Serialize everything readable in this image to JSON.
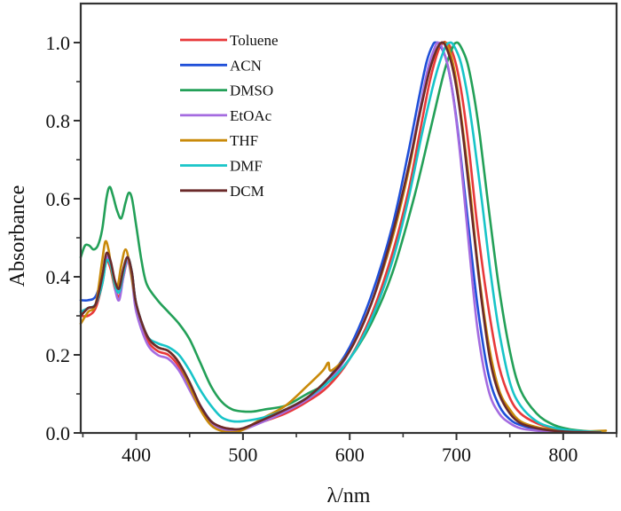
{
  "chart_data": {
    "type": "line",
    "title": "",
    "xlabel": "λ/nm",
    "ylabel": "Absorbance",
    "xlim": [
      348,
      850
    ],
    "ylim": [
      0.0,
      1.1
    ],
    "x_ticks": [
      400,
      500,
      600,
      700,
      800
    ],
    "x_tick_labels": [
      "400",
      "500",
      "600",
      "700",
      "800"
    ],
    "x_minor_ticks": [
      350,
      450,
      550,
      650,
      750,
      850
    ],
    "y_ticks": [
      0.0,
      0.2,
      0.4,
      0.6,
      0.8,
      1.0
    ],
    "y_tick_labels": [
      "0.0",
      "0.2",
      "0.4",
      "0.6",
      "0.8",
      "1.0"
    ],
    "y_minor_ticks": [
      0.1,
      0.3,
      0.5,
      0.7,
      0.9
    ],
    "grid": false,
    "legend_position": "top-left",
    "series": [
      {
        "name": "Toluene",
        "color": "#e8393a",
        "x": [
          348,
          355,
          362,
          368,
          372,
          376,
          380,
          384,
          388,
          392,
          396,
          400,
          410,
          420,
          430,
          440,
          450,
          460,
          470,
          480,
          490,
          500,
          520,
          540,
          560,
          580,
          600,
          620,
          640,
          655,
          665,
          675,
          683,
          688,
          690,
          694,
          700,
          706,
          712,
          720,
          730,
          740,
          750,
          760,
          775,
          790,
          805,
          820,
          835
        ],
        "y": [
          0.3,
          0.3,
          0.32,
          0.38,
          0.44,
          0.42,
          0.37,
          0.35,
          0.4,
          0.44,
          0.4,
          0.32,
          0.24,
          0.21,
          0.2,
          0.17,
          0.12,
          0.07,
          0.03,
          0.015,
          0.01,
          0.01,
          0.03,
          0.05,
          0.08,
          0.12,
          0.19,
          0.3,
          0.46,
          0.62,
          0.76,
          0.9,
          0.98,
          1.0,
          1.0,
          0.99,
          0.94,
          0.85,
          0.72,
          0.52,
          0.32,
          0.17,
          0.09,
          0.05,
          0.025,
          0.012,
          0.006,
          0.003,
          0.002
        ]
      },
      {
        "name": "ACN",
        "color": "#1f4fd8",
        "x": [
          348,
          355,
          362,
          368,
          372,
          376,
          380,
          384,
          388,
          392,
          396,
          400,
          410,
          420,
          430,
          440,
          450,
          460,
          470,
          480,
          490,
          500,
          520,
          540,
          560,
          580,
          600,
          620,
          640,
          655,
          665,
          672,
          678,
          681,
          684,
          690,
          696,
          702,
          710,
          720,
          730,
          740,
          750,
          760,
          775,
          790,
          805,
          820,
          835
        ],
        "y": [
          0.34,
          0.34,
          0.35,
          0.4,
          0.45,
          0.43,
          0.38,
          0.37,
          0.42,
          0.45,
          0.41,
          0.33,
          0.25,
          0.22,
          0.21,
          0.18,
          0.12,
          0.07,
          0.03,
          0.01,
          0.005,
          0.01,
          0.035,
          0.06,
          0.09,
          0.14,
          0.22,
          0.35,
          0.53,
          0.72,
          0.86,
          0.95,
          0.995,
          1.0,
          0.995,
          0.96,
          0.88,
          0.76,
          0.56,
          0.32,
          0.15,
          0.07,
          0.035,
          0.02,
          0.01,
          0.006,
          0.004,
          0.002,
          0.001
        ]
      },
      {
        "name": "DMSO",
        "color": "#23a058",
        "x": [
          348,
          352,
          356,
          360,
          364,
          368,
          372,
          375,
          378,
          382,
          386,
          390,
          393,
          396,
          400,
          405,
          410,
          420,
          430,
          440,
          450,
          460,
          470,
          480,
          490,
          500,
          510,
          520,
          540,
          560,
          580,
          600,
          620,
          640,
          660,
          675,
          688,
          696,
          700,
          704,
          710,
          716,
          722,
          730,
          740,
          750,
          760,
          775,
          790,
          805,
          820,
          835
        ],
        "y": [
          0.45,
          0.48,
          0.48,
          0.47,
          0.48,
          0.52,
          0.6,
          0.63,
          0.61,
          0.57,
          0.55,
          0.59,
          0.615,
          0.6,
          0.53,
          0.44,
          0.38,
          0.34,
          0.31,
          0.28,
          0.24,
          0.18,
          0.12,
          0.08,
          0.06,
          0.055,
          0.055,
          0.06,
          0.07,
          0.1,
          0.13,
          0.19,
          0.28,
          0.41,
          0.6,
          0.77,
          0.92,
          0.985,
          1.0,
          0.99,
          0.95,
          0.87,
          0.76,
          0.58,
          0.37,
          0.21,
          0.11,
          0.05,
          0.022,
          0.01,
          0.005,
          0.002
        ]
      },
      {
        "name": "EtOAc",
        "color": "#a46be0",
        "x": [
          348,
          355,
          362,
          368,
          372,
          376,
          380,
          384,
          388,
          392,
          396,
          400,
          410,
          420,
          430,
          440,
          450,
          460,
          470,
          480,
          490,
          500,
          520,
          540,
          560,
          580,
          600,
          620,
          640,
          655,
          665,
          673,
          680,
          683,
          686,
          692,
          698,
          704,
          712,
          720,
          730,
          740,
          750,
          760,
          775,
          790,
          805,
          820,
          835
        ],
        "y": [
          0.31,
          0.32,
          0.33,
          0.39,
          0.45,
          0.43,
          0.37,
          0.34,
          0.4,
          0.44,
          0.39,
          0.31,
          0.23,
          0.2,
          0.19,
          0.16,
          0.11,
          0.06,
          0.025,
          0.01,
          0.005,
          0.008,
          0.03,
          0.055,
          0.085,
          0.13,
          0.21,
          0.33,
          0.5,
          0.68,
          0.82,
          0.93,
          0.99,
          1.0,
          0.99,
          0.94,
          0.84,
          0.7,
          0.47,
          0.26,
          0.11,
          0.05,
          0.025,
          0.012,
          0.006,
          0.003,
          0.002,
          0.001,
          0.001
        ]
      },
      {
        "name": "THF",
        "color": "#c98a0a",
        "x": [
          348,
          355,
          362,
          368,
          371,
          374,
          378,
          382,
          386,
          390,
          394,
          400,
          410,
          420,
          430,
          440,
          450,
          460,
          470,
          480,
          490,
          500,
          520,
          540,
          560,
          575,
          580,
          583,
          600,
          620,
          640,
          655,
          665,
          675,
          683,
          688,
          692,
          698,
          704,
          712,
          720,
          730,
          740,
          750,
          760,
          775,
          790,
          805,
          820,
          840
        ],
        "y": [
          0.28,
          0.31,
          0.33,
          0.44,
          0.49,
          0.47,
          0.4,
          0.37,
          0.43,
          0.47,
          0.43,
          0.33,
          0.25,
          0.22,
          0.21,
          0.18,
          0.12,
          0.06,
          0.02,
          0.005,
          0.002,
          0.008,
          0.04,
          0.07,
          0.12,
          0.16,
          0.18,
          0.16,
          0.21,
          0.33,
          0.5,
          0.67,
          0.81,
          0.93,
          0.99,
          1.0,
          0.99,
          0.93,
          0.82,
          0.64,
          0.43,
          0.23,
          0.11,
          0.06,
          0.03,
          0.015,
          0.008,
          0.005,
          0.004,
          0.006
        ]
      },
      {
        "name": "DMF",
        "color": "#18c4c8",
        "x": [
          348,
          355,
          362,
          368,
          372,
          376,
          380,
          384,
          388,
          392,
          396,
          400,
          410,
          420,
          430,
          440,
          450,
          460,
          470,
          480,
          490,
          500,
          520,
          540,
          560,
          580,
          600,
          620,
          640,
          655,
          668,
          680,
          689,
          694,
          698,
          704,
          710,
          716,
          724,
          732,
          740,
          750,
          760,
          775,
          790,
          805,
          820,
          835
        ],
        "y": [
          0.31,
          0.32,
          0.33,
          0.38,
          0.44,
          0.43,
          0.38,
          0.36,
          0.41,
          0.45,
          0.41,
          0.33,
          0.25,
          0.23,
          0.22,
          0.2,
          0.16,
          0.11,
          0.07,
          0.04,
          0.03,
          0.03,
          0.04,
          0.06,
          0.09,
          0.13,
          0.19,
          0.29,
          0.44,
          0.6,
          0.77,
          0.91,
          0.985,
          1.0,
          0.99,
          0.95,
          0.87,
          0.76,
          0.59,
          0.41,
          0.26,
          0.13,
          0.07,
          0.03,
          0.014,
          0.007,
          0.004,
          0.002
        ]
      },
      {
        "name": "DCM",
        "color": "#6b2a2a",
        "x": [
          348,
          355,
          362,
          368,
          372,
          376,
          380,
          384,
          388,
          392,
          396,
          400,
          410,
          420,
          430,
          440,
          450,
          460,
          470,
          480,
          490,
          500,
          520,
          540,
          560,
          580,
          600,
          620,
          640,
          655,
          665,
          674,
          681,
          686,
          690,
          696,
          702,
          708,
          716,
          724,
          732,
          740,
          750,
          760,
          775,
          790,
          805,
          820,
          835
        ],
        "y": [
          0.3,
          0.32,
          0.33,
          0.4,
          0.46,
          0.44,
          0.39,
          0.37,
          0.42,
          0.45,
          0.41,
          0.33,
          0.25,
          0.22,
          0.21,
          0.18,
          0.13,
          0.07,
          0.03,
          0.015,
          0.01,
          0.012,
          0.035,
          0.06,
          0.09,
          0.14,
          0.21,
          0.33,
          0.51,
          0.68,
          0.81,
          0.92,
          0.98,
          1.0,
          0.99,
          0.94,
          0.85,
          0.72,
          0.52,
          0.33,
          0.18,
          0.1,
          0.05,
          0.025,
          0.012,
          0.006,
          0.003,
          0.002,
          0.001
        ]
      }
    ]
  }
}
